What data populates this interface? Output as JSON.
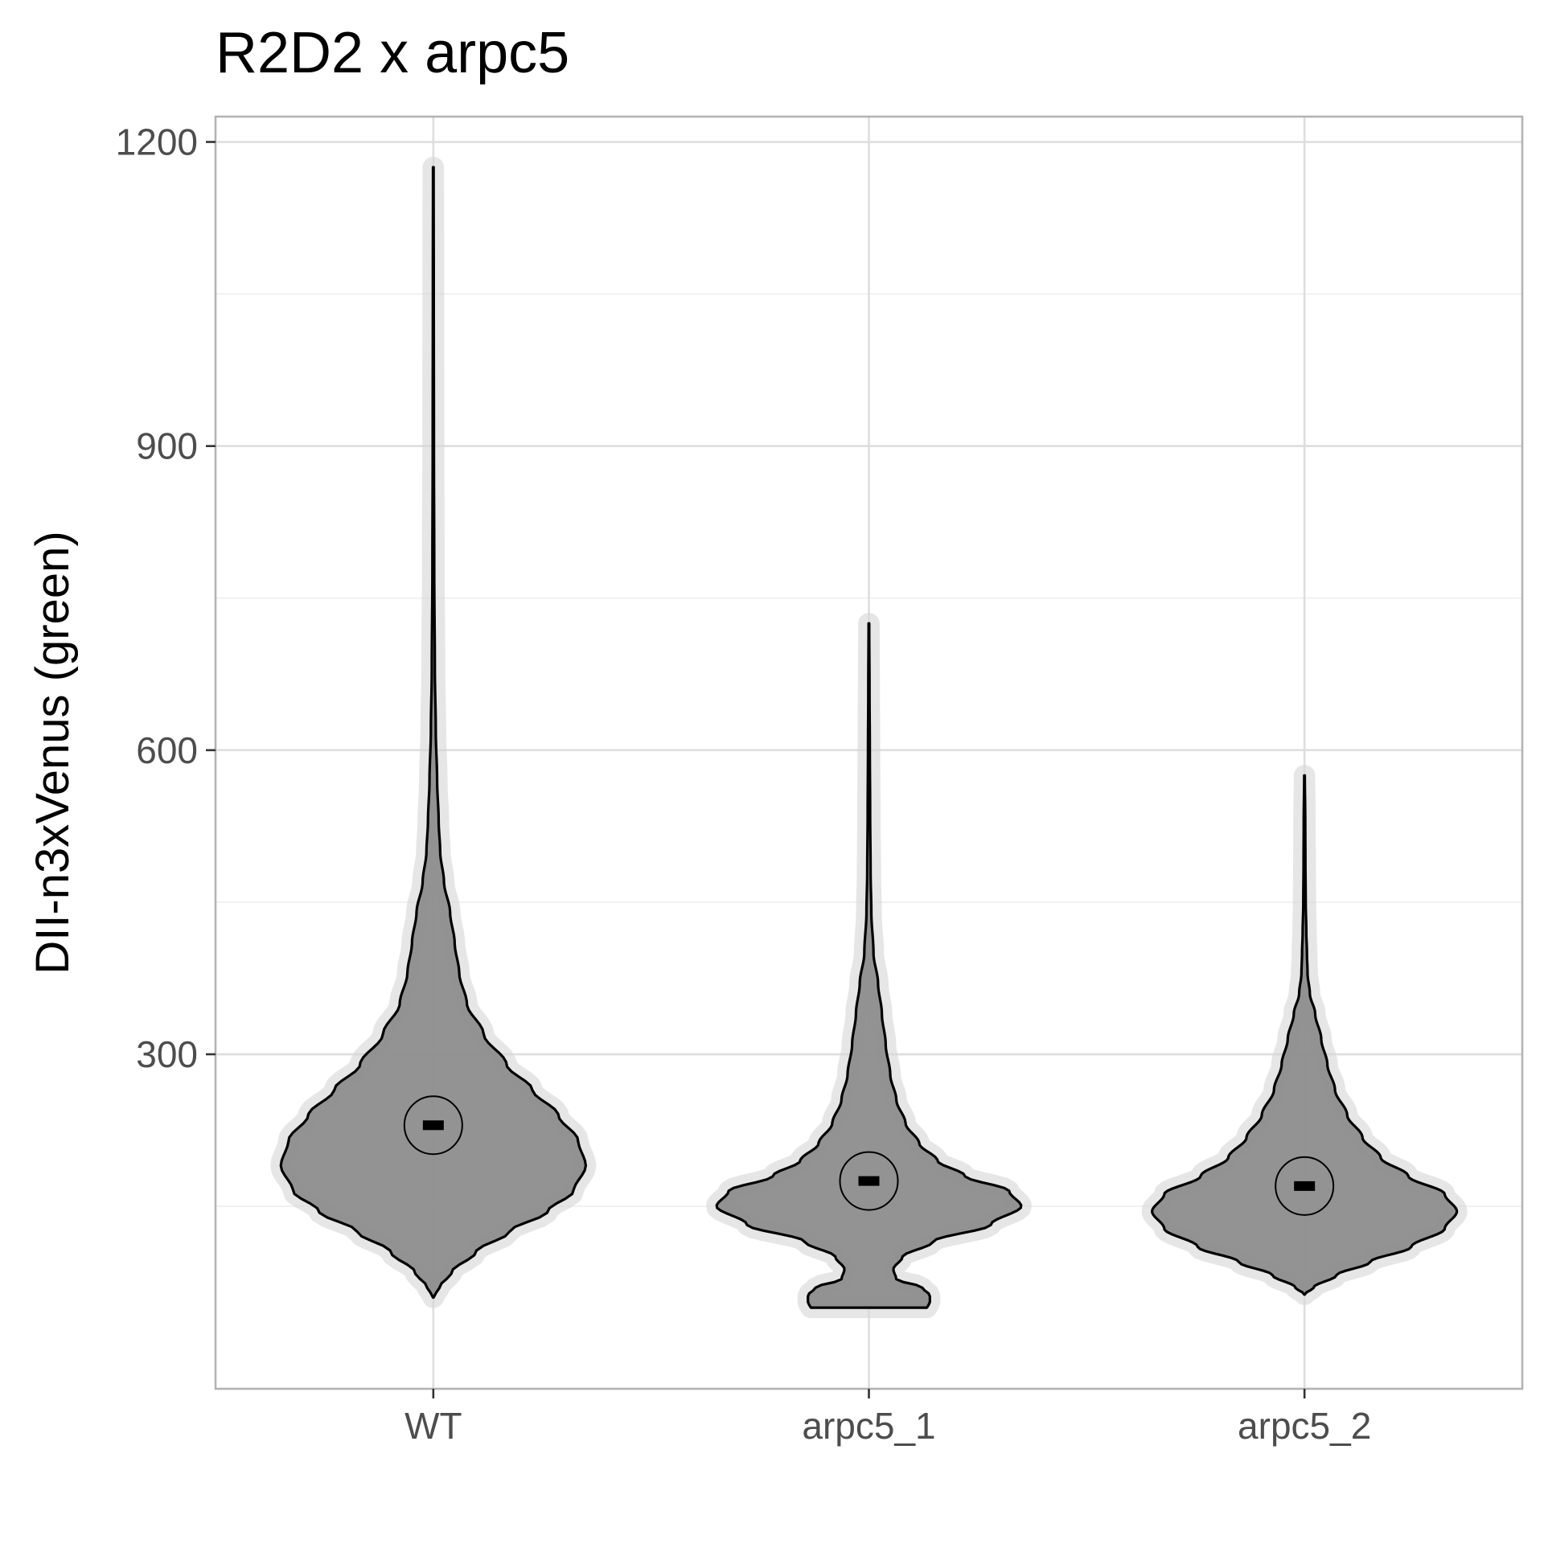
{
  "chart_data": {
    "type": "violin",
    "title": "R2D2 x arpc5",
    "xlabel": "",
    "ylabel": "DII-n3xVenus (green)",
    "ylim": [
      -30,
      1225
    ],
    "yticks": [
      300,
      600,
      900,
      1200
    ],
    "ytick_labels": [
      "300",
      "600",
      "900",
      "1200"
    ],
    "grid": true,
    "legend": "none",
    "categories": [
      "WT",
      "arpc5_1",
      "arpc5_2"
    ],
    "series": [
      {
        "category": "WT",
        "min": 60,
        "max": 1175,
        "mean": 230,
        "mode": 190,
        "density_profile": [
          [
            60,
            0.0
          ],
          [
            70,
            0.04
          ],
          [
            85,
            0.12
          ],
          [
            105,
            0.28
          ],
          [
            125,
            0.5
          ],
          [
            145,
            0.75
          ],
          [
            165,
            0.92
          ],
          [
            190,
            1.0
          ],
          [
            215,
            0.95
          ],
          [
            240,
            0.82
          ],
          [
            265,
            0.65
          ],
          [
            290,
            0.48
          ],
          [
            320,
            0.33
          ],
          [
            350,
            0.22
          ],
          [
            380,
            0.17
          ],
          [
            410,
            0.14
          ],
          [
            440,
            0.11
          ],
          [
            470,
            0.07
          ],
          [
            500,
            0.045
          ],
          [
            530,
            0.035
          ],
          [
            570,
            0.025
          ],
          [
            620,
            0.016
          ],
          [
            680,
            0.01
          ],
          [
            780,
            0.006
          ],
          [
            900,
            0.004
          ],
          [
            1050,
            0.003
          ],
          [
            1175,
            0.002
          ]
        ]
      },
      {
        "category": "arpc5_1",
        "min": 50,
        "max": 725,
        "mean": 175,
        "mode": 150,
        "density_profile": [
          [
            50,
            0.38
          ],
          [
            55,
            0.4
          ],
          [
            62,
            0.4
          ],
          [
            70,
            0.35
          ],
          [
            78,
            0.18
          ],
          [
            88,
            0.16
          ],
          [
            100,
            0.22
          ],
          [
            115,
            0.42
          ],
          [
            132,
            0.8
          ],
          [
            150,
            1.0
          ],
          [
            165,
            0.92
          ],
          [
            180,
            0.63
          ],
          [
            195,
            0.45
          ],
          [
            212,
            0.33
          ],
          [
            232,
            0.24
          ],
          [
            255,
            0.18
          ],
          [
            280,
            0.14
          ],
          [
            310,
            0.11
          ],
          [
            340,
            0.085
          ],
          [
            370,
            0.06
          ],
          [
            400,
            0.03
          ],
          [
            440,
            0.016
          ],
          [
            480,
            0.011
          ],
          [
            540,
            0.008
          ],
          [
            600,
            0.006
          ],
          [
            660,
            0.004
          ],
          [
            725,
            0.002
          ]
        ]
      },
      {
        "category": "arpc5_2",
        "min": 63,
        "max": 575,
        "mean": 170,
        "mode": 145,
        "density_profile": [
          [
            63,
            0.0
          ],
          [
            70,
            0.06
          ],
          [
            82,
            0.21
          ],
          [
            95,
            0.43
          ],
          [
            110,
            0.7
          ],
          [
            128,
            0.92
          ],
          [
            145,
            1.0
          ],
          [
            162,
            0.92
          ],
          [
            180,
            0.68
          ],
          [
            198,
            0.5
          ],
          [
            218,
            0.38
          ],
          [
            240,
            0.28
          ],
          [
            265,
            0.2
          ],
          [
            290,
            0.15
          ],
          [
            315,
            0.11
          ],
          [
            340,
            0.07
          ],
          [
            360,
            0.035
          ],
          [
            380,
            0.02
          ],
          [
            400,
            0.016
          ],
          [
            420,
            0.012
          ],
          [
            450,
            0.008
          ],
          [
            490,
            0.006
          ],
          [
            530,
            0.005
          ],
          [
            575,
            0.002
          ]
        ]
      }
    ]
  }
}
